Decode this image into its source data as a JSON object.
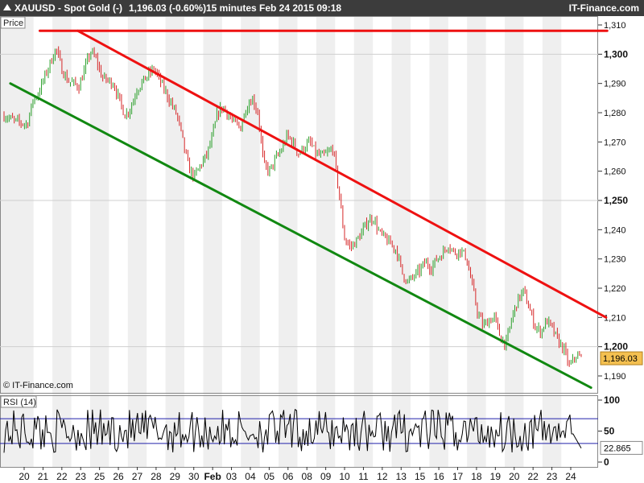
{
  "header": {
    "symbol": "XAUUSD - Spot Gold (-)",
    "price": "1,196.03 (-0.60%)",
    "timeframe": "15 minutes",
    "timestamp": "Feb 24 2015 09:18",
    "brand": "IT-Finance.com"
  },
  "price_panel": {
    "label": "Price",
    "last_value": "1,196.03",
    "copyright": "© IT-Finance.com"
  },
  "rsi_panel": {
    "label": "RSI (14)",
    "last_value": "22.865"
  },
  "colors": {
    "up": "#2ca02c",
    "down": "#d62728",
    "resistance": "#ee1111",
    "support": "#118811",
    "rsi_line": "#000000",
    "rsi_levels": "#2222aa",
    "last_badge": "#f4c050"
  },
  "chart_data": [
    {
      "type": "line",
      "name": "price",
      "title": "",
      "xlabel": "",
      "ylabel": "Price",
      "x_ticks": [
        "20",
        "21",
        "22",
        "23",
        "25",
        "26",
        "27",
        "28",
        "29",
        "30",
        "Feb",
        "03",
        "04",
        "05",
        "06",
        "08",
        "09",
        "10",
        "11",
        "12",
        "13",
        "15",
        "16",
        "17",
        "18",
        "19",
        "20",
        "22",
        "23",
        "24"
      ],
      "ylim": [
        1186,
        1312
      ],
      "y_ticks": [
        "1,310",
        "1,300",
        "1,290",
        "1,280",
        "1,270",
        "1,260",
        "1,250",
        "1,240",
        "1,230",
        "1,220",
        "1,210",
        "1,200",
        "1,190"
      ],
      "x_index_range": [
        0,
        100
      ],
      "close_path": [
        [
          0,
          1279
        ],
        [
          2,
          1277
        ],
        [
          4,
          1276
        ],
        [
          5,
          1284
        ],
        [
          6,
          1287
        ],
        [
          8,
          1297
        ],
        [
          9,
          1302
        ],
        [
          10,
          1295
        ],
        [
          11,
          1291
        ],
        [
          13,
          1289
        ],
        [
          14,
          1295
        ],
        [
          15,
          1301
        ],
        [
          16,
          1298
        ],
        [
          17,
          1292
        ],
        [
          19,
          1290
        ],
        [
          20,
          1284
        ],
        [
          21,
          1279
        ],
        [
          22,
          1282
        ],
        [
          23,
          1288
        ],
        [
          25,
          1293
        ],
        [
          26,
          1295
        ],
        [
          27,
          1291
        ],
        [
          28,
          1287
        ],
        [
          29,
          1283
        ],
        [
          30,
          1279
        ],
        [
          31,
          1270
        ],
        [
          32,
          1261
        ],
        [
          33,
          1258
        ],
        [
          34,
          1262
        ],
        [
          35,
          1265
        ],
        [
          36,
          1271
        ],
        [
          37,
          1280
        ],
        [
          38,
          1282
        ],
        [
          39,
          1279
        ],
        [
          40,
          1276
        ],
        [
          41,
          1275
        ],
        [
          42,
          1282
        ],
        [
          43,
          1285
        ],
        [
          44,
          1280
        ],
        [
          45,
          1262
        ],
        [
          46,
          1260
        ],
        [
          47,
          1264
        ],
        [
          48,
          1267
        ],
        [
          49,
          1272
        ],
        [
          50,
          1270
        ],
        [
          51,
          1266
        ],
        [
          52,
          1268
        ],
        [
          53,
          1270
        ],
        [
          54,
          1266
        ],
        [
          55,
          1265
        ],
        [
          56,
          1266
        ],
        [
          57,
          1268
        ],
        [
          58,
          1253
        ],
        [
          59,
          1237
        ],
        [
          60,
          1234
        ],
        [
          61,
          1236
        ],
        [
          62,
          1239
        ],
        [
          63,
          1243
        ],
        [
          64,
          1244
        ],
        [
          65,
          1239
        ],
        [
          66,
          1237
        ],
        [
          67,
          1235
        ],
        [
          68,
          1233
        ],
        [
          69,
          1225
        ],
        [
          70,
          1222
        ],
        [
          71,
          1224
        ],
        [
          72,
          1226
        ],
        [
          73,
          1229
        ],
        [
          74,
          1227
        ],
        [
          75,
          1230
        ],
        [
          76,
          1232
        ],
        [
          77,
          1235
        ],
        [
          78,
          1232
        ],
        [
          79,
          1233
        ],
        [
          80,
          1231
        ],
        [
          81,
          1222
        ],
        [
          82,
          1212
        ],
        [
          83,
          1207
        ],
        [
          84,
          1209
        ],
        [
          85,
          1210
        ],
        [
          86,
          1203
        ],
        [
          87,
          1201
        ],
        [
          88,
          1210
        ],
        [
          89,
          1216
        ],
        [
          90,
          1219
        ],
        [
          91,
          1213
        ],
        [
          92,
          1207
        ],
        [
          93,
          1205
        ],
        [
          94,
          1209
        ],
        [
          95,
          1206
        ],
        [
          96,
          1202
        ],
        [
          97,
          1199
        ],
        [
          98,
          1193
        ],
        [
          99,
          1197
        ],
        [
          100,
          1196
        ]
      ],
      "trendlines": [
        {
          "name": "resistance-top",
          "color": "#ee1111",
          "points": [
            [
              6.2,
              1308
            ],
            [
              104.5,
              1308
            ]
          ]
        },
        {
          "name": "resistance-channel",
          "color": "#ee1111",
          "points": [
            [
              12.8,
              1308
            ],
            [
              104.3,
              1210
            ]
          ]
        },
        {
          "name": "support-channel",
          "color": "#118811",
          "points": [
            [
              1.1,
              1290
            ],
            [
              101.7,
              1186
            ]
          ]
        }
      ],
      "last_close": 1196.03,
      "grid": "vertical-bands"
    },
    {
      "type": "line",
      "name": "RSI (14)",
      "ylim": [
        0,
        100
      ],
      "y_ticks": [
        "100",
        "50",
        "0"
      ],
      "levels": [
        30,
        70
      ],
      "last_value": 22.865
    }
  ]
}
